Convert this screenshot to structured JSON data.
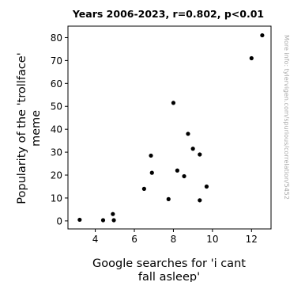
{
  "chart_data": {
    "type": "scatter",
    "title": "Years 2006-2023, r=0.802, p<0.01",
    "xlabel_lines": [
      "Google searches for 'i cant",
      "fall asleep'"
    ],
    "ylabel_lines": [
      "Popularity of the 'trollface'",
      "meme"
    ],
    "xlim": [
      2.6,
      13.0
    ],
    "ylim": [
      -3.5,
      85.0
    ],
    "xticks": [
      4,
      6,
      8,
      10,
      12
    ],
    "yticks": [
      0,
      10,
      20,
      30,
      40,
      50,
      60,
      70,
      80
    ],
    "side_note": "More info: tylervigen.com/spurious/correlation/5452",
    "point_color": "#000000",
    "grid": false,
    "legend": "none",
    "points": [
      {
        "x": 3.2,
        "y": 0.5
      },
      {
        "x": 4.4,
        "y": 0.3
      },
      {
        "x": 4.9,
        "y": 3.0
      },
      {
        "x": 4.95,
        "y": 0.3
      },
      {
        "x": 6.5,
        "y": 14.0
      },
      {
        "x": 6.85,
        "y": 28.5
      },
      {
        "x": 6.9,
        "y": 21.0
      },
      {
        "x": 7.75,
        "y": 9.5
      },
      {
        "x": 8.0,
        "y": 51.5
      },
      {
        "x": 8.2,
        "y": 22.0
      },
      {
        "x": 8.55,
        "y": 19.5
      },
      {
        "x": 8.75,
        "y": 38.0
      },
      {
        "x": 9.0,
        "y": 31.5
      },
      {
        "x": 9.35,
        "y": 29.0
      },
      {
        "x": 9.35,
        "y": 9.0
      },
      {
        "x": 9.7,
        "y": 15.0
      },
      {
        "x": 12.0,
        "y": 71.0
      },
      {
        "x": 12.55,
        "y": 81.0
      }
    ]
  }
}
